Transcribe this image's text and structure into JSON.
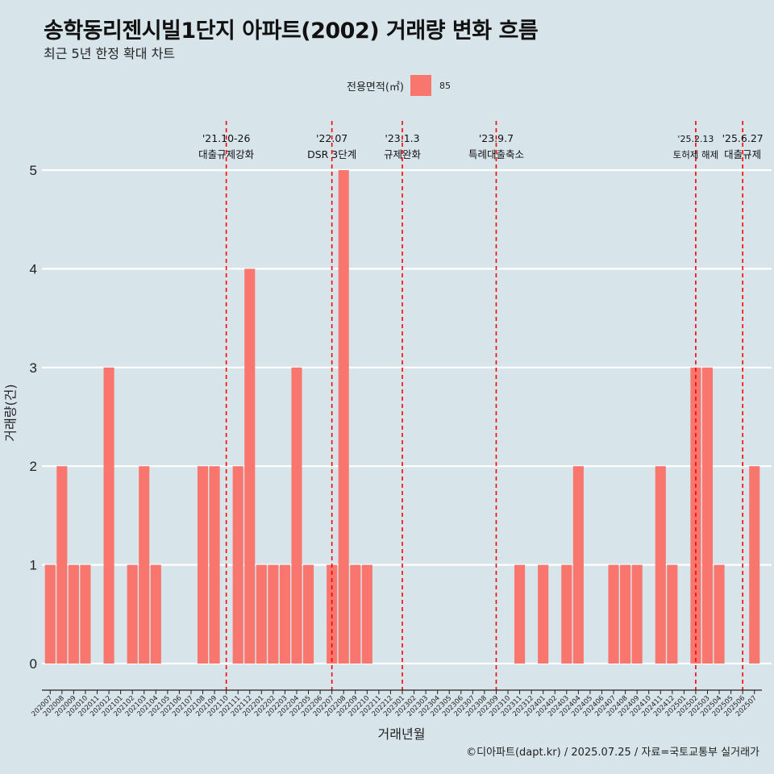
{
  "header": {
    "title": "송학동리젠시빌1단지 아파트(2002) 거래량 변화 흐름",
    "subtitle": "최근 5년 한정 확대 차트"
  },
  "legend": {
    "title": "전용면적(㎡)",
    "items": [
      {
        "label": "85",
        "color": "#f8766d"
      }
    ]
  },
  "caption": "©디아파트(dapt.kr) / 2025.07.25 / 자료=국토교통부 실거래가",
  "colors": {
    "background": "#d7e4ea",
    "bar": "#f8766d",
    "grid": "#ffffff",
    "event_line": "#ff0000"
  },
  "chart_data": {
    "type": "bar",
    "xlabel": "거래년월",
    "ylabel": "거래량(건)",
    "ylim": [
      0,
      5
    ],
    "yticks": [
      0,
      1,
      2,
      3,
      4,
      5
    ],
    "grid": true,
    "legend_position": "top",
    "categories": [
      "202007",
      "202008",
      "202009",
      "202010",
      "202011",
      "202012",
      "202101",
      "202102",
      "202103",
      "202104",
      "202105",
      "202106",
      "202107",
      "202108",
      "202109",
      "202110",
      "202111",
      "202112",
      "202201",
      "202202",
      "202203",
      "202204",
      "202205",
      "202206",
      "202207",
      "202208",
      "202209",
      "202210",
      "202211",
      "202212",
      "202301",
      "202302",
      "202303",
      "202304",
      "202305",
      "202306",
      "202307",
      "202308",
      "202309",
      "202310",
      "202311",
      "202312",
      "202401",
      "202402",
      "202403",
      "202404",
      "202405",
      "202406",
      "202407",
      "202408",
      "202409",
      "202410",
      "202411",
      "202412",
      "202501",
      "202502",
      "202503",
      "202504",
      "202505",
      "202506",
      "202507"
    ],
    "series": [
      {
        "name": "85",
        "values": [
          1,
          2,
          1,
          1,
          0,
          3,
          0,
          1,
          2,
          1,
          0,
          0,
          0,
          2,
          2,
          0,
          2,
          4,
          1,
          1,
          1,
          3,
          1,
          0,
          1,
          5,
          1,
          1,
          0,
          0,
          0,
          0,
          0,
          0,
          0,
          0,
          0,
          0,
          0,
          0,
          1,
          0,
          1,
          0,
          1,
          2,
          0,
          0,
          1,
          1,
          1,
          0,
          2,
          1,
          0,
          3,
          3,
          1,
          0,
          0,
          2
        ]
      }
    ],
    "events": [
      {
        "date_label": "'21.10-26",
        "label": "대출규제강화",
        "x_category": "202110"
      },
      {
        "date_label": "'22.07",
        "label": "DSR 3단계",
        "x_category": "202207"
      },
      {
        "date_label": "'23.1.3",
        "label": "규제완화",
        "x_category": "202301"
      },
      {
        "date_label": "'23.9.7",
        "label": "특례대출축소",
        "x_category": "202309"
      },
      {
        "date_label": "'25.2.13",
        "label": "토허제 해제",
        "x_category": "202502"
      },
      {
        "date_label": "'25.6.27",
        "label": "대출규제",
        "x_category": "202506"
      }
    ]
  }
}
